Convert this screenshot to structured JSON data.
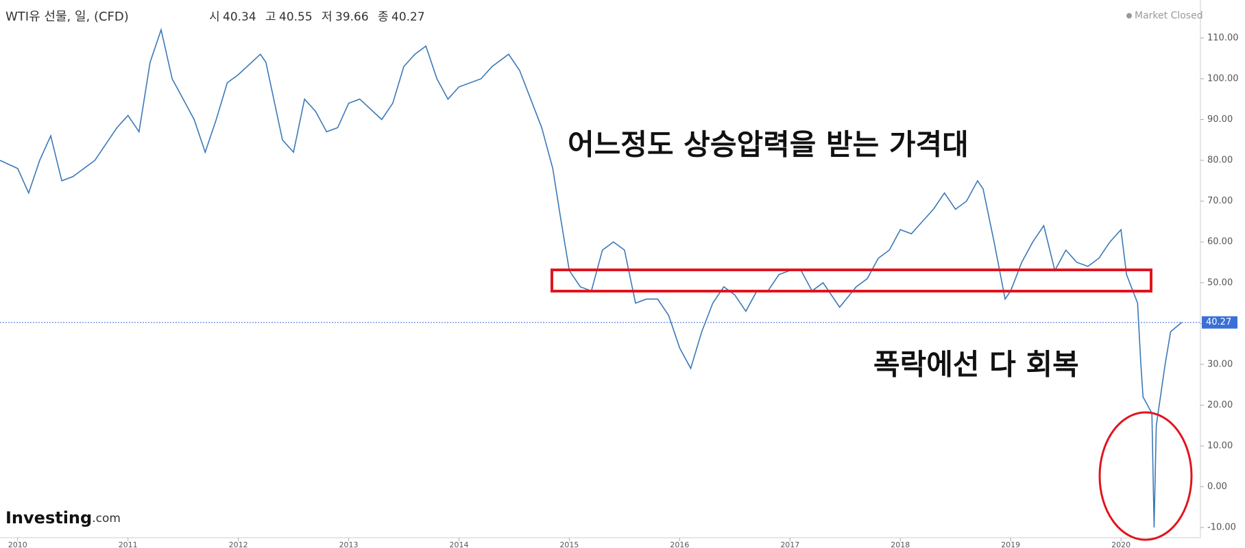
{
  "chart_data": {
    "type": "line",
    "title": "WTI유 선물, 일, (CFD)",
    "ohlc": [
      {
        "label": "시",
        "value": 40.34
      },
      {
        "label": "고",
        "value": 40.55
      },
      {
        "label": "저",
        "value": 39.66
      },
      {
        "label": "종",
        "value": 40.27
      }
    ],
    "status": "Market Closed",
    "logo": [
      "Investing",
      ".com"
    ],
    "annotations": [
      "어느정도 상승압력을 받는 가격대",
      "폭락에선 다 회복"
    ],
    "last_price": 40.27,
    "x": [
      2009.84,
      2010.0,
      2010.1,
      2010.2,
      2010.3,
      2010.4,
      2010.5,
      2010.6,
      2010.7,
      2010.8,
      2010.9,
      2011.0,
      2011.1,
      2011.2,
      2011.3,
      2011.4,
      2011.5,
      2011.6,
      2011.7,
      2011.8,
      2011.9,
      2012.0,
      2012.2,
      2012.25,
      2012.4,
      2012.5,
      2012.6,
      2012.7,
      2012.8,
      2012.9,
      2013.0,
      2013.1,
      2013.3,
      2013.4,
      2013.5,
      2013.6,
      2013.7,
      2013.8,
      2013.9,
      2014.0,
      2014.2,
      2014.3,
      2014.45,
      2014.55,
      2014.65,
      2014.75,
      2014.85,
      2014.92,
      2015.0,
      2015.1,
      2015.2,
      2015.3,
      2015.4,
      2015.5,
      2015.6,
      2015.7,
      2015.8,
      2015.9,
      2016.0,
      2016.1,
      2016.2,
      2016.3,
      2016.4,
      2016.5,
      2016.6,
      2016.7,
      2016.8,
      2016.9,
      2017.0,
      2017.1,
      2017.2,
      2017.3,
      2017.45,
      2017.6,
      2017.7,
      2017.8,
      2017.9,
      2018.0,
      2018.1,
      2018.2,
      2018.3,
      2018.4,
      2018.5,
      2018.6,
      2018.7,
      2018.75,
      2018.85,
      2018.95,
      2019.0,
      2019.1,
      2019.2,
      2019.3,
      2019.4,
      2019.5,
      2019.6,
      2019.7,
      2019.8,
      2019.9,
      2020.0,
      2020.05,
      2020.15,
      2020.18,
      2020.2,
      2020.28,
      2020.3,
      2020.32,
      2020.4,
      2020.45,
      2020.55
    ],
    "series": [
      {
        "color": "#3a78b8",
        "values": [
          80,
          78,
          72,
          80,
          86,
          75,
          76,
          78,
          80,
          84,
          88,
          91,
          87,
          104,
          112,
          100,
          95,
          90,
          82,
          90,
          99,
          101,
          106,
          104,
          85,
          82,
          95,
          92,
          87,
          88,
          94,
          95,
          90,
          94,
          103,
          106,
          108,
          100,
          95,
          98,
          100,
          103,
          106,
          102,
          95,
          88,
          78,
          66,
          53,
          49,
          48,
          58,
          60,
          58,
          45,
          46,
          46,
          42,
          34,
          29,
          38,
          45,
          49,
          47,
          43,
          48,
          48,
          52,
          53,
          53,
          48,
          50,
          44,
          49,
          51,
          56,
          58,
          63,
          62,
          65,
          68,
          72,
          68,
          70,
          75,
          73,
          60,
          46,
          48,
          55,
          60,
          64,
          53,
          58,
          55,
          54,
          56,
          60,
          63,
          52,
          45,
          30,
          22,
          18,
          -10,
          15,
          30,
          38,
          40.27
        ]
      }
    ],
    "xlim": [
      2009.84,
      2020.72
    ],
    "xticks": [
      2010,
      2011,
      2012,
      2013,
      2014,
      2015,
      2016,
      2017,
      2018,
      2019,
      2020
    ],
    "ylim": [
      -12.5,
      119.3
    ],
    "yticks": [
      {
        "value": -10,
        "label": "-10.00"
      },
      {
        "value": 0,
        "label": "0.00"
      },
      {
        "value": 10,
        "label": "10.00"
      },
      {
        "value": 20,
        "label": "20.00"
      },
      {
        "value": 30,
        "label": "30.00"
      },
      {
        "value": 40,
        "label": "40.00"
      },
      {
        "value": 50,
        "label": "50.00"
      },
      {
        "value": 60,
        "label": "60.00"
      },
      {
        "value": 70,
        "label": "70.00"
      },
      {
        "value": 80,
        "label": "80.00"
      },
      {
        "value": 90,
        "label": "90.00"
      },
      {
        "value": 100,
        "label": "100.00"
      },
      {
        "value": 110,
        "label": "110.00"
      }
    ]
  }
}
